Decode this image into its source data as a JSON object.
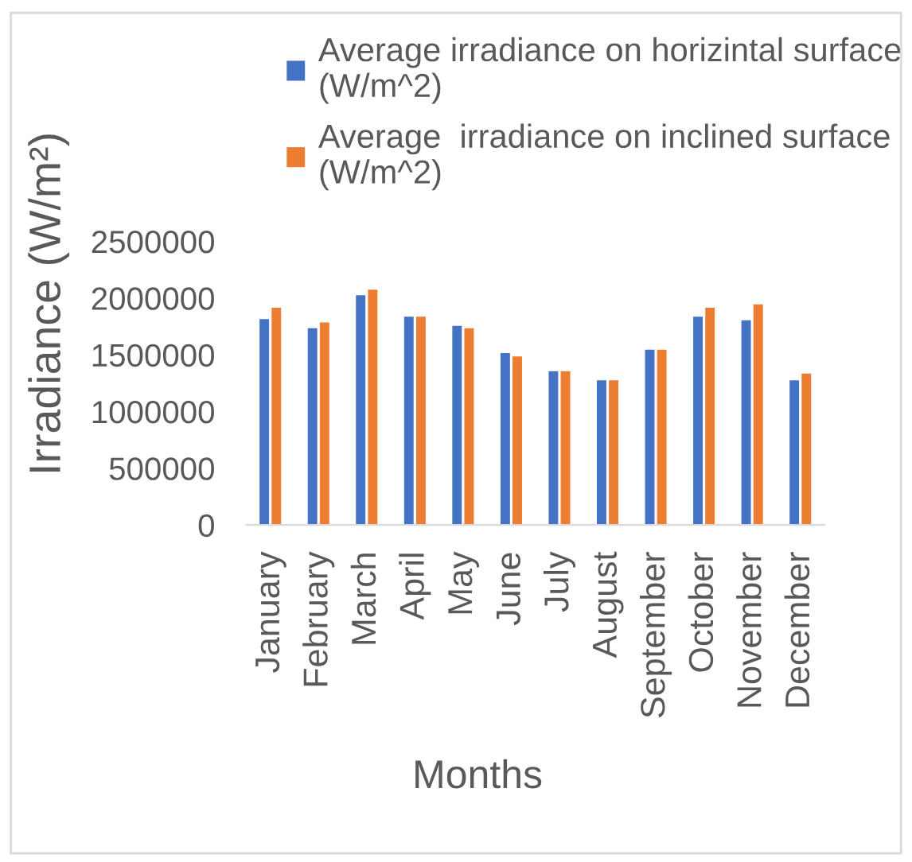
{
  "chart_data": {
    "type": "bar",
    "xlabel": "Months",
    "ylabel": "Irradiance (W/m²)",
    "categories": [
      "January",
      "February",
      "March",
      "April",
      "May",
      "June",
      "July",
      "August",
      "September",
      "October",
      "November",
      "December"
    ],
    "series": [
      {
        "name": "Average irradiance on horizintal surface (W/m^2)",
        "color": "#4472c4",
        "values": [
          1820000,
          1740000,
          2030000,
          1840000,
          1760000,
          1520000,
          1360000,
          1280000,
          1550000,
          1840000,
          1810000,
          1280000
        ]
      },
      {
        "name": "Average  irradiance on inclined surface (W/m^2)",
        "color": "#ed7d31",
        "values": [
          1920000,
          1790000,
          2080000,
          1840000,
          1740000,
          1490000,
          1360000,
          1280000,
          1550000,
          1920000,
          1950000,
          1340000
        ]
      }
    ],
    "ylim": [
      0,
      2500000
    ],
    "yticks": [
      0,
      500000,
      1000000,
      1500000,
      2000000,
      2500000
    ],
    "grid": false,
    "legend": "top"
  }
}
